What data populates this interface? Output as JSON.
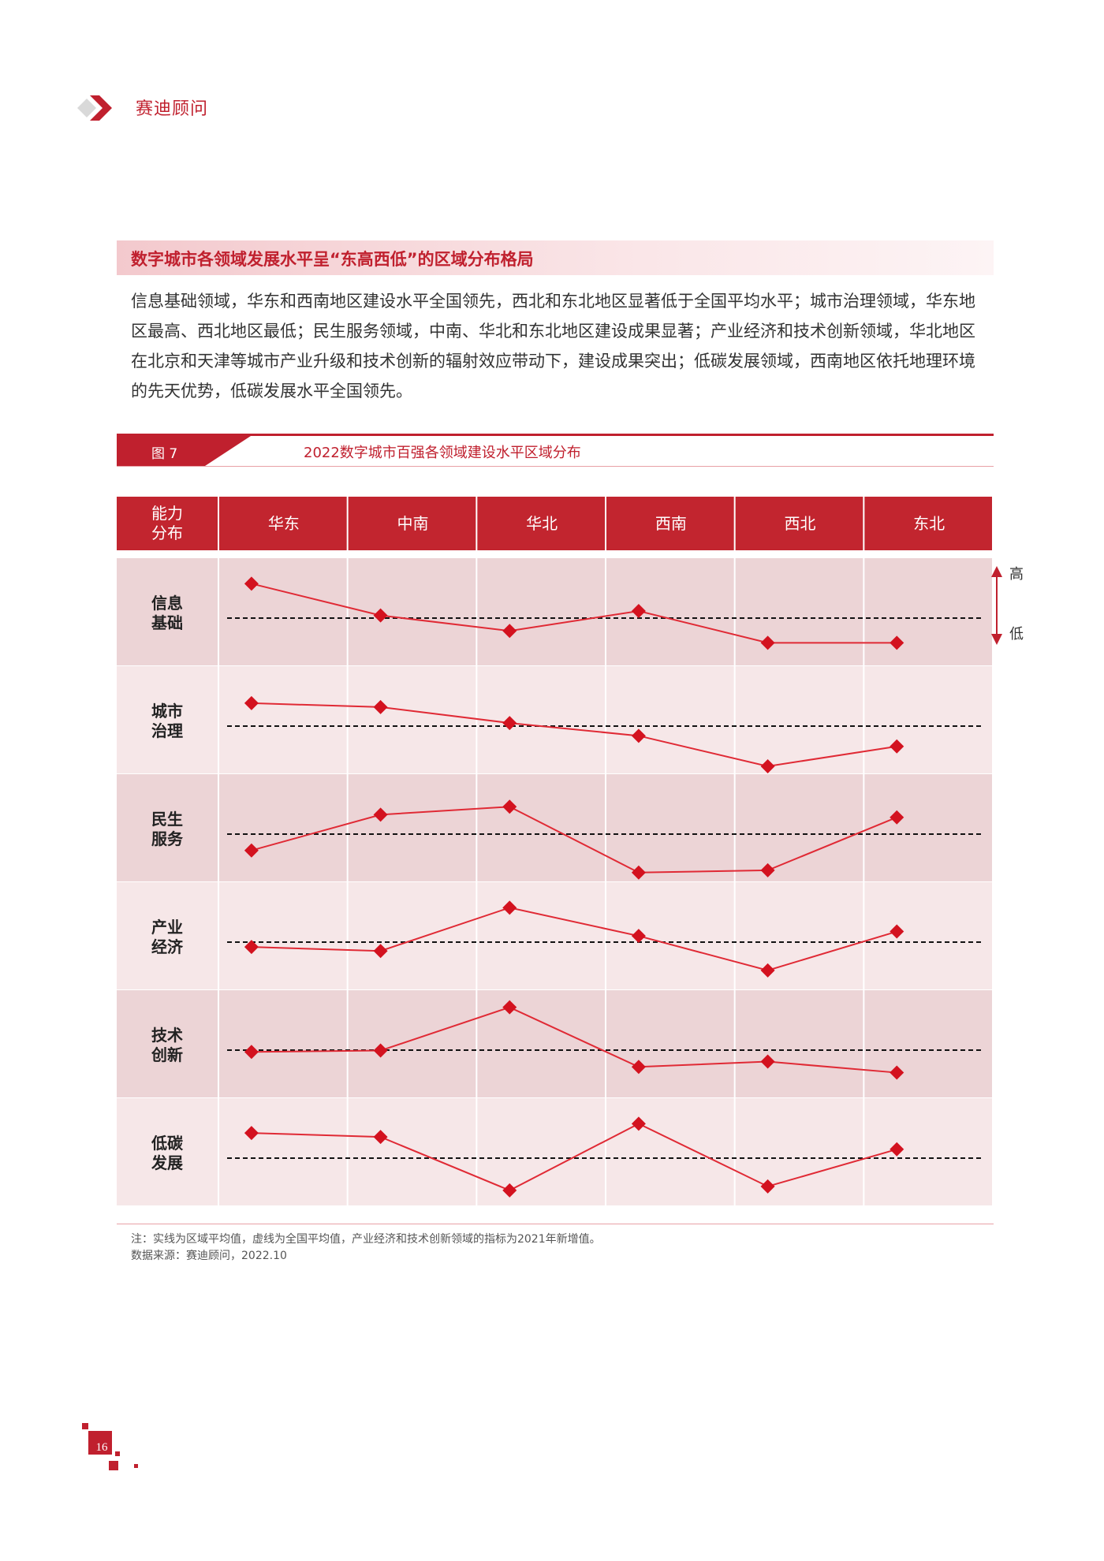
{
  "header": {
    "brand": "赛迪顾问"
  },
  "section": {
    "title": "数字城市各领域发展水平呈“东高西低”的区域分布格局",
    "body": "信息基础领域，华东和西南地区建设水平全国领先，西北和东北地区显著低于全国平均水平；城市治理领域，华东地区最高、西北地区最低；民生服务领域，中南、华北和东北地区建设成果显著；产业经济和技术创新领域，华北地区在北京和天津等城市产业升级和技术创新的辐射效应带动下，建设成果突出；低碳发展领域，西南地区依托地理环境的先天优势，低碳发展水平全国领先。"
  },
  "figure": {
    "label": "图 7",
    "title": "2022数字城市百强各领域建设水平区域分布"
  },
  "chart_data": {
    "type": "line",
    "corner_label": "能力分布",
    "categories": [
      "华东",
      "中南",
      "华北",
      "西南",
      "西北",
      "东北"
    ],
    "rows": [
      {
        "name": "信息基础",
        "values": [
          0.78,
          0.06,
          -0.29,
          0.16,
          -0.56,
          -0.56
        ]
      },
      {
        "name": "城市治理",
        "values": [
          0.52,
          0.43,
          0.07,
          -0.22,
          -0.91,
          -0.46
        ]
      },
      {
        "name": "民生服务",
        "values": [
          -0.37,
          0.44,
          0.62,
          -0.87,
          -0.82,
          0.38
        ]
      },
      {
        "name": "产业经济",
        "values": [
          -0.11,
          -0.2,
          0.78,
          0.14,
          -0.64,
          0.24
        ]
      },
      {
        "name": "技术创新",
        "values": [
          -0.04,
          -0.01,
          0.97,
          -0.38,
          -0.26,
          -0.51
        ]
      },
      {
        "name": "低碳发展",
        "values": [
          0.57,
          0.48,
          -0.73,
          0.78,
          -0.64,
          0.2
        ]
      }
    ],
    "reference_line": "全国平均值（虚线）",
    "scale_high": "高",
    "scale_low": "低",
    "line_color": "#e02a35",
    "marker_color": "#d3121f",
    "header_color": "#c2252f",
    "row_dark_color": "#ecd4d6",
    "row_light_color": "#f6e7e8"
  },
  "notes": {
    "note": "注：实线为区域平均值，虚线为全国平均值，产业经济和技术创新领域的指标为2021年新增值。",
    "source": "数据来源：赛迪顾问，2022.10"
  },
  "page": {
    "number": "16"
  },
  "colors": {
    "brand_red": "#c0202e"
  }
}
